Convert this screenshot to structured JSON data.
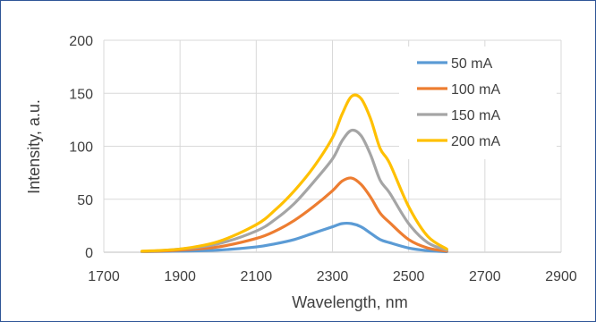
{
  "chart_data": {
    "type": "line",
    "title": "",
    "xlabel": "Wavelength, nm",
    "ylabel": "Intensity, a.u.",
    "xlim": [
      1700,
      2900
    ],
    "ylim": [
      0,
      200
    ],
    "xticks": [
      1700,
      1900,
      2100,
      2300,
      2500,
      2700,
      2900
    ],
    "yticks": [
      0,
      50,
      100,
      150,
      200
    ],
    "grid": true,
    "legend_position": "top-right",
    "x": [
      1800,
      1900,
      2000,
      2100,
      2150,
      2200,
      2250,
      2300,
      2325,
      2350,
      2375,
      2400,
      2425,
      2450,
      2500,
      2550,
      2600
    ],
    "series": [
      {
        "name": "50 mA",
        "color": "#5b9bd5",
        "values": [
          0.5,
          1,
          2,
          5,
          8,
          12,
          18,
          24,
          27,
          27,
          24,
          18,
          12,
          9,
          4,
          1.5,
          0.5
        ]
      },
      {
        "name": "100 mA",
        "color": "#ed7d31",
        "values": [
          0.5,
          2,
          5,
          13,
          20,
          30,
          43,
          58,
          67,
          70,
          64,
          52,
          37,
          28,
          12,
          4,
          1
        ]
      },
      {
        "name": "150 mA",
        "color": "#a5a5a5",
        "values": [
          0.5,
          3,
          8,
          20,
          31,
          46,
          66,
          88,
          105,
          115,
          110,
          92,
          68,
          56,
          27,
          9,
          2
        ]
      },
      {
        "name": "200 mA",
        "color": "#ffc000",
        "values": [
          1,
          3,
          10,
          26,
          40,
          58,
          80,
          108,
          130,
          147,
          145,
          126,
          98,
          84,
          43,
          15,
          3
        ]
      }
    ]
  }
}
